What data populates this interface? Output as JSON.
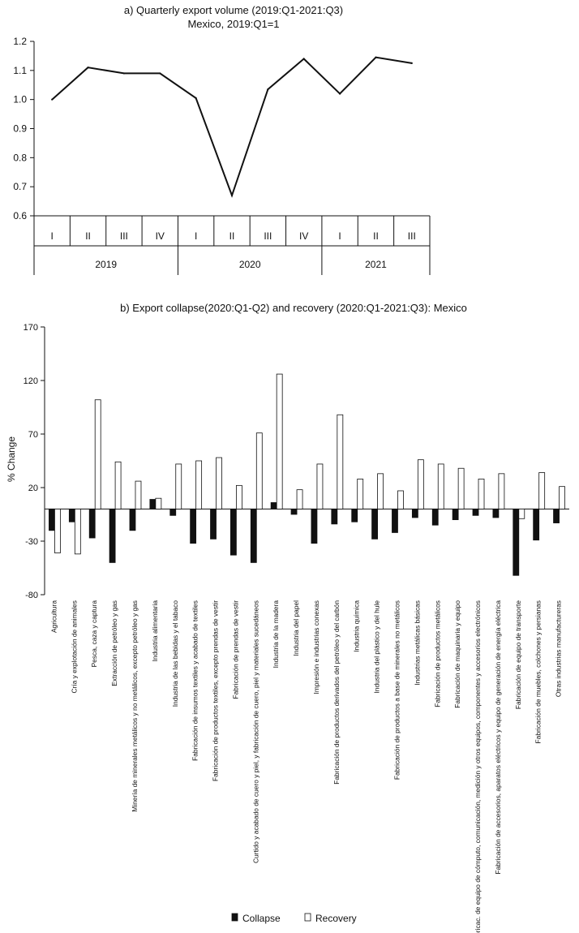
{
  "chart_data": [
    {
      "type": "line",
      "title": "a) Quarterly export volume (2019:Q1-2021:Q3)",
      "subtitle": "Mexico, 2019:Q1=1",
      "xlabel": "",
      "ylabel": "",
      "ylim": [
        0.6,
        1.2
      ],
      "yticks": [
        "1.2",
        "1.1",
        "1.0",
        "0.9",
        "0.8",
        "0.7",
        "0.6"
      ],
      "quarters": [
        "I",
        "II",
        "III",
        "IV",
        "I",
        "II",
        "III",
        "IV",
        "I",
        "II",
        "III"
      ],
      "years": [
        "2019",
        "2020",
        "2021"
      ],
      "series": [
        {
          "name": "Mexico",
          "values": [
            1.0,
            1.11,
            1.09,
            1.09,
            1.005,
            0.67,
            1.035,
            1.14,
            1.02,
            1.145,
            1.125
          ]
        }
      ],
      "grid": false,
      "legend": "none"
    },
    {
      "type": "bar",
      "title": "b) Export collapse(2020:Q1-Q2) and recovery (2020:Q1-2021:Q3): Mexico",
      "xlabel": "",
      "ylabel": "% Change",
      "ylim": [
        -80,
        170
      ],
      "yticks": [
        "170",
        "120",
        "70",
        "20",
        "-30",
        "-80"
      ],
      "legend": "bottom",
      "categories": [
        "Agricultura",
        "Cría y explotación de animales",
        "Pesca, caza y captura",
        "Extracción de petróleo y gas",
        "Minería de minerales metálicos y no metálicos, excepto petróleo y gas",
        "Industria alimentaria",
        "Industria de las bebidas y el tabaco",
        "Fabricación de insumos textiles y acabado de textiles",
        "Fabricación de productos textiles, excepto prendas de vestir",
        "Fabricación de prendas de vestir",
        "Curtido y acabado de cuero y piel, y fabricación de cuero, piel y materiales sucedáneos",
        "Industria de la madera",
        "Industria del papel",
        "Impresión e industrias conexas",
        "Fabricación de productos derivados del petróleo y del carbón",
        "Industria química",
        "Industria del plástico y del hule",
        "Fabricación de productos a base de minerales no metálicos",
        "Industrias metálicas básicas",
        "Fabricación de productos metálicos",
        "Fabricación de maquinaria y equipo",
        "Fabricac. de equipo de cómputo, comunicación, medición y otros equipos, componentes y accesorios electrónicos",
        "Fabricación de accesorios, aparatos eléctricos y equipo de generación de energía eléctrica",
        "Fabricación de equipo de transporte",
        "Fabricación de muebles, colchones y persianas",
        "Otras industrias manufactureras"
      ],
      "series": [
        {
          "name": "Collapse",
          "color": "#111111",
          "values": [
            -20,
            -12,
            -27,
            -50,
            -20,
            9,
            -6,
            -32,
            -28,
            -43,
            -50,
            6,
            -5,
            -32,
            -14,
            -12,
            -28,
            -22,
            -8,
            -15,
            -10,
            -6,
            -8,
            -62,
            -29,
            -13
          ]
        },
        {
          "name": "Recovery",
          "color": "#ffffff",
          "values": [
            -41,
            -42,
            102,
            44,
            26,
            10,
            42,
            45,
            48,
            22,
            71,
            126,
            18,
            42,
            88,
            28,
            33,
            17,
            46,
            42,
            38,
            28,
            33,
            -9,
            34,
            21
          ]
        }
      ]
    }
  ]
}
